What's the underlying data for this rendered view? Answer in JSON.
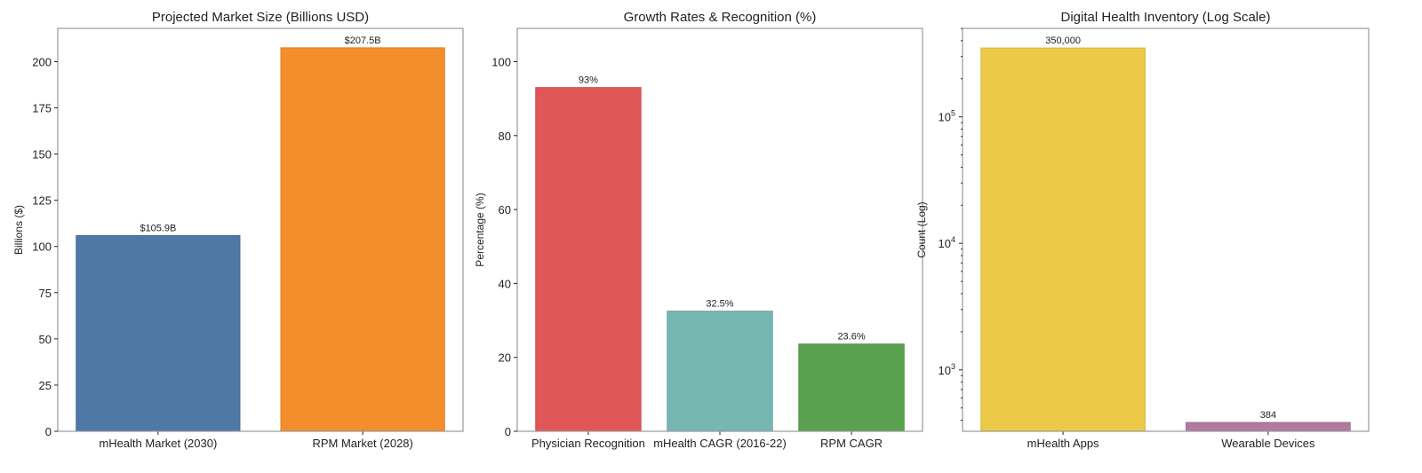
{
  "chart_data": [
    {
      "type": "bar",
      "title": "Projected Market Size (Billions USD)",
      "xlabel": "",
      "ylabel": "Billions ($)",
      "categories": [
        "mHealth Market (2030)",
        "RPM Market (2028)"
      ],
      "values": [
        105.9,
        207.5
      ],
      "data_labels": [
        "$105.9B",
        "$207.5B"
      ],
      "colors": [
        "#4e79a7",
        "#f28e2b"
      ],
      "ylim": [
        0,
        218
      ],
      "yticks": [
        0,
        25,
        50,
        75,
        100,
        125,
        150,
        175,
        200
      ],
      "yscale": "linear",
      "grid": false
    },
    {
      "type": "bar",
      "title": "Growth Rates & Recognition (%)",
      "xlabel": "",
      "ylabel": "Percentage (%)",
      "categories": [
        "Physician Recognition",
        "mHealth CAGR (2016-22)",
        "RPM CAGR"
      ],
      "values": [
        93,
        32.5,
        23.6
      ],
      "data_labels": [
        "93%",
        "32.5%",
        "23.6%"
      ],
      "colors": [
        "#e15759",
        "#76b7b2",
        "#59a14f"
      ],
      "ylim": [
        0,
        109
      ],
      "yticks": [
        0,
        20,
        40,
        60,
        80,
        100
      ],
      "yscale": "linear",
      "grid": false
    },
    {
      "type": "bar",
      "title": "Digital Health Inventory (Log Scale)",
      "xlabel": "",
      "ylabel": "Count (Log)",
      "categories": [
        "mHealth Apps",
        "Wearable Devices"
      ],
      "values": [
        350000,
        384
      ],
      "data_labels": [
        "350,000",
        "384"
      ],
      "colors": [
        "#edc948",
        "#b07aa1"
      ],
      "ylim": [
        327,
        500000
      ],
      "yticks": [
        1000,
        10000,
        100000
      ],
      "ytick_labels": [
        [
          "10",
          "3"
        ],
        [
          "10",
          "4"
        ],
        [
          "10",
          "5"
        ]
      ],
      "yscale": "log",
      "grid": false
    }
  ]
}
